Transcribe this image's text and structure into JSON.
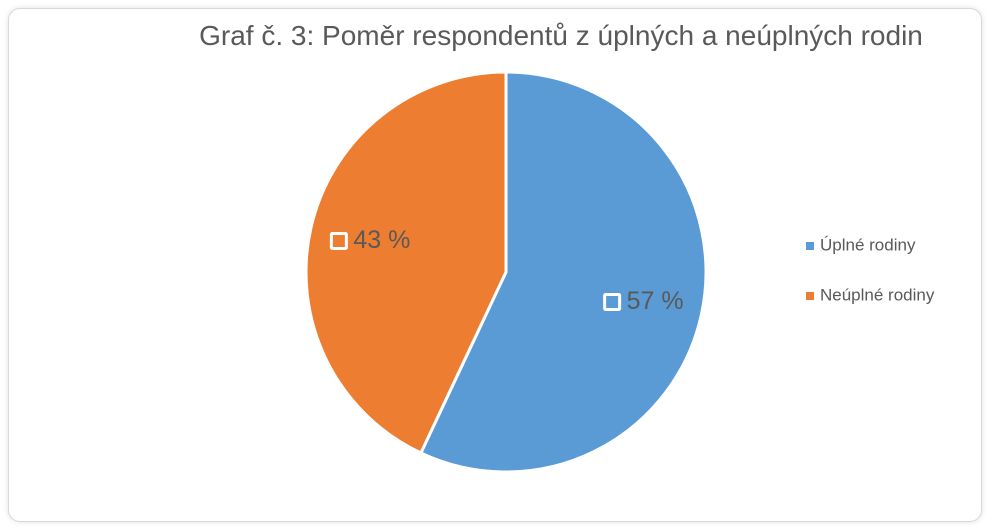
{
  "chart_data": {
    "type": "pie",
    "title": "Graf č. 3: Poměr respondentů z úplných a neúplných rodin",
    "categories": [
      "Úplné rodiny",
      "Neúplné rodiny"
    ],
    "values": [
      57,
      43
    ],
    "value_labels": [
      "57 %",
      "43 %"
    ],
    "colors": [
      "#5b9bd5",
      "#ed7d31"
    ],
    "legend": "right"
  }
}
